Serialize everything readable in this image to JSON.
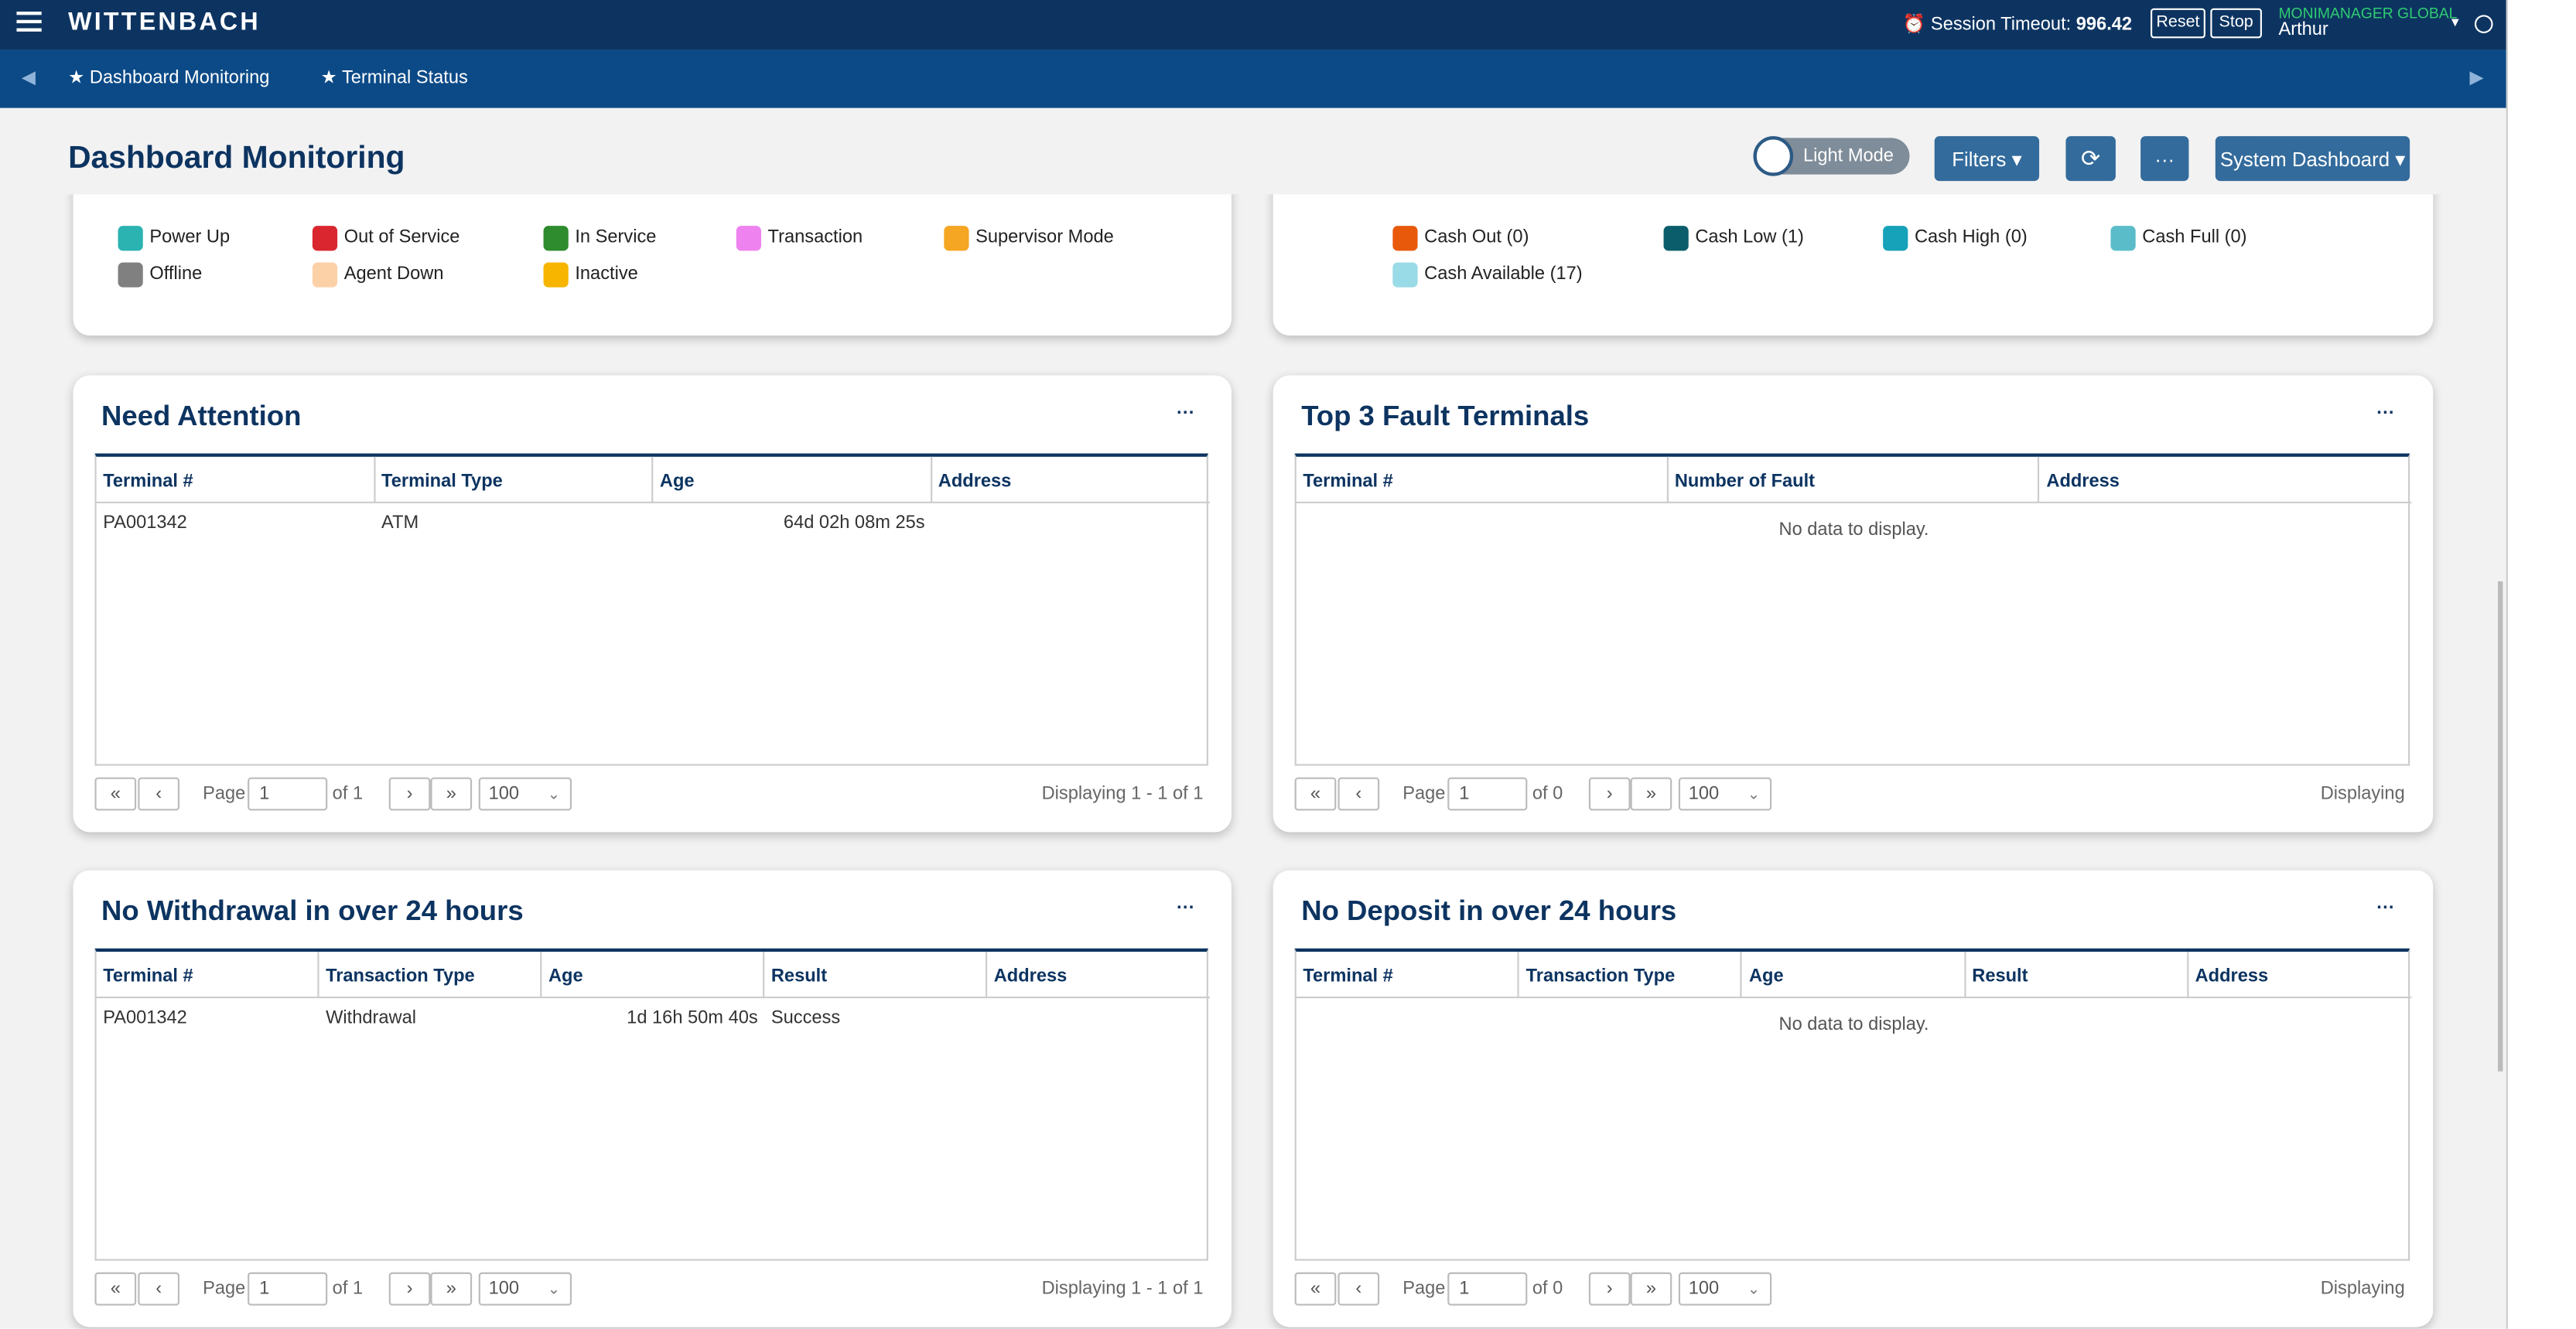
{
  "header": {
    "brand": "WITTENBACH",
    "session_label": "Session Timeout:",
    "session_value": "996.42",
    "reset": "Reset",
    "stop": "Stop",
    "org": "MONIMANAGER GLOBAL",
    "user": "Arthur"
  },
  "tabs": [
    "Dashboard Monitoring",
    "Terminal Status"
  ],
  "page_title": "Dashboard Monitoring",
  "toolbar": {
    "mode": "Light Mode",
    "filters": "Filters",
    "more": "···",
    "dashboard": "System Dashboard"
  },
  "legend_left": [
    {
      "label": "Power Up",
      "color": "#2bb3b1"
    },
    {
      "label": "Out of Service",
      "color": "#d9262f"
    },
    {
      "label": "In Service",
      "color": "#2e8b2e"
    },
    {
      "label": "Transaction",
      "color": "#ee82ee"
    },
    {
      "label": "Supervisor Mode",
      "color": "#f5a623"
    },
    {
      "label": "Offline",
      "color": "#808080"
    },
    {
      "label": "Agent Down",
      "color": "#fcd1a8"
    },
    {
      "label": "Inactive",
      "color": "#f7b500"
    }
  ],
  "legend_right": [
    {
      "label": "Cash Out (0)",
      "color": "#e8590c"
    },
    {
      "label": "Cash Low (1)",
      "color": "#0b5d6b"
    },
    {
      "label": "Cash High (0)",
      "color": "#16a2b8"
    },
    {
      "label": "Cash Full (0)",
      "color": "#5bbcc9"
    },
    {
      "label": "Cash Available (17)",
      "color": "#99dbe6"
    }
  ],
  "pager": {
    "page": "Page",
    "icons": [
      "«",
      "‹",
      "›",
      "»"
    ]
  },
  "panels": [
    {
      "title": "Need Attention",
      "columns": [
        "Terminal #",
        "Terminal Type",
        "Age",
        "Address"
      ],
      "rows": [
        [
          "PA001342",
          "ATM",
          "64d 02h 08m 25s"
        ]
      ],
      "page": "1",
      "of": "of 1",
      "size": "100",
      "displaying": "Displaying 1 - 1 of 1"
    },
    {
      "title": "Top 3 Fault Terminals",
      "columns": [
        "Terminal #",
        "Number of Fault",
        "Address"
      ],
      "empty": "No data to display.",
      "page": "1",
      "of": "of 0",
      "size": "100",
      "displaying": "Displaying"
    },
    {
      "title": "No Withdrawal in over 24 hours",
      "columns": [
        "Terminal #",
        "Transaction Type",
        "Age",
        "Result",
        "Address"
      ],
      "rows": [
        [
          "PA001342",
          "Withdrawal",
          "1d 16h 50m 40s",
          "Success"
        ]
      ],
      "page": "1",
      "of": "of 1",
      "size": "100",
      "displaying": "Displaying 1 - 1 of 1"
    },
    {
      "title": "No Deposit in over 24 hours",
      "columns": [
        "Terminal #",
        "Transaction Type",
        "Age",
        "Result",
        "Address"
      ],
      "empty": "No data to display.",
      "page": "1",
      "of": "of 0",
      "size": "100",
      "displaying": "Displaying"
    }
  ]
}
